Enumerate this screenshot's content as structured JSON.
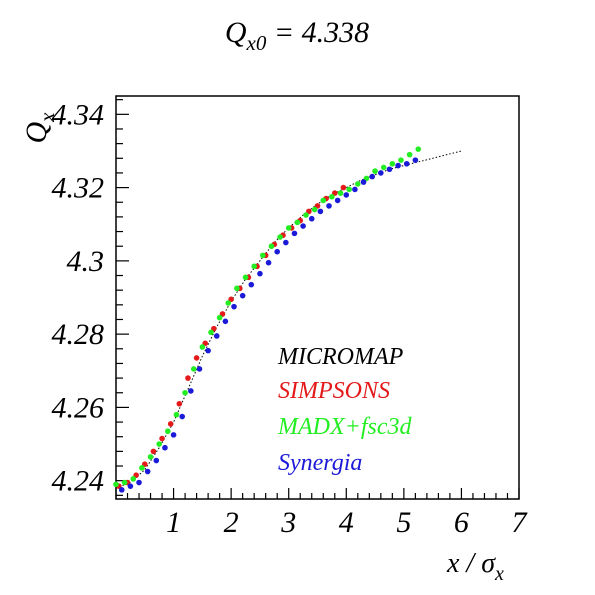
{
  "chart_data": {
    "type": "scatter",
    "title": {
      "main": "Q",
      "sub": "x0",
      "rest": " = 4.338"
    },
    "ylabel": {
      "main": "Q",
      "sub": "x"
    },
    "xlabel": {
      "main": "x / ",
      "sigma": "σ",
      "sub": "x"
    },
    "xlim": [
      0,
      7
    ],
    "ylim": [
      4.235,
      4.345
    ],
    "x_ticks": [
      "1",
      "2",
      "3",
      "4",
      "5",
      "6",
      "7"
    ],
    "y_ticks": [
      "4.24",
      "4.26",
      "4.28",
      "4.3",
      "4.32",
      "4.34"
    ],
    "legend_position": "center-right",
    "grid": false,
    "series": [
      {
        "name": "MICROMAP",
        "color": "#000000",
        "style": "dotted-line",
        "x": [
          0.0,
          0.25,
          0.5,
          0.75,
          1.0,
          1.25,
          1.5,
          1.75,
          2.0,
          2.25,
          2.5,
          2.75,
          3.0,
          3.25,
          3.5,
          3.75,
          4.0,
          4.25,
          4.5,
          4.75,
          5.0,
          5.25,
          5.5,
          5.75,
          6.0
        ],
        "y": [
          4.238,
          4.2395,
          4.243,
          4.249,
          4.256,
          4.265,
          4.274,
          4.282,
          4.289,
          4.295,
          4.3,
          4.305,
          4.309,
          4.3125,
          4.3155,
          4.318,
          4.32,
          4.322,
          4.3235,
          4.325,
          4.326,
          4.327,
          4.328,
          4.329,
          4.33
        ]
      },
      {
        "name": "SIMPSONS",
        "color": "#e41a1a",
        "style": "points",
        "x": [
          0.05,
          0.2,
          0.35,
          0.5,
          0.65,
          0.8,
          0.95,
          1.1,
          1.25,
          1.4,
          1.55,
          1.7,
          1.85,
          2.0,
          2.15,
          2.3,
          2.45,
          2.6,
          2.75,
          2.9,
          3.05,
          3.2,
          3.35,
          3.5,
          3.65,
          3.8,
          3.95
        ],
        "y": [
          4.2385,
          4.2395,
          4.2415,
          4.2445,
          4.248,
          4.2515,
          4.2555,
          4.261,
          4.268,
          4.2735,
          4.2775,
          4.2815,
          4.2855,
          4.2895,
          4.2925,
          4.2955,
          4.2985,
          4.3015,
          4.3045,
          4.307,
          4.309,
          4.311,
          4.3135,
          4.315,
          4.317,
          4.3185,
          4.32
        ]
      },
      {
        "name": "MADX+fsc3d",
        "color": "#22ee22",
        "style": "points",
        "x": [
          0.0,
          0.15,
          0.3,
          0.45,
          0.6,
          0.75,
          0.9,
          1.05,
          1.2,
          1.35,
          1.5,
          1.65,
          1.8,
          1.95,
          2.1,
          2.25,
          2.4,
          2.55,
          2.7,
          2.85,
          3.0,
          3.15,
          3.3,
          3.45,
          3.6,
          3.75,
          3.9,
          4.05,
          4.2,
          4.35,
          4.5,
          4.65,
          4.8,
          4.95,
          5.1,
          5.25
        ],
        "y": [
          4.239,
          4.2395,
          4.2405,
          4.2435,
          4.2465,
          4.25,
          4.2535,
          4.258,
          4.264,
          4.2705,
          4.2765,
          4.2805,
          4.2845,
          4.2885,
          4.2925,
          4.2955,
          4.2985,
          4.3015,
          4.304,
          4.3065,
          4.309,
          4.3105,
          4.3125,
          4.314,
          4.3165,
          4.3175,
          4.3185,
          4.3195,
          4.321,
          4.3225,
          4.3245,
          4.3255,
          4.3265,
          4.3275,
          4.329,
          4.3305
        ]
      },
      {
        "name": "Synergia",
        "color": "#1a1ad8",
        "style": "points",
        "x": [
          0.1,
          0.25,
          0.4,
          0.55,
          0.7,
          0.85,
          1.0,
          1.15,
          1.3,
          1.45,
          1.6,
          1.75,
          1.9,
          2.05,
          2.2,
          2.35,
          2.5,
          2.65,
          2.8,
          2.95,
          3.1,
          3.25,
          3.4,
          3.55,
          3.7,
          3.85,
          4.0,
          4.15,
          4.3,
          4.45,
          4.6,
          4.75,
          4.9,
          5.05,
          5.2
        ],
        "y": [
          4.2375,
          4.2385,
          4.2395,
          4.2425,
          4.2455,
          4.249,
          4.2525,
          4.2575,
          4.2645,
          4.2705,
          4.2755,
          4.2795,
          4.2835,
          4.2875,
          4.2905,
          4.2935,
          4.2965,
          4.2995,
          4.3025,
          4.305,
          4.3075,
          4.3095,
          4.3115,
          4.3135,
          4.315,
          4.3165,
          4.318,
          4.3195,
          4.3215,
          4.323,
          4.324,
          4.325,
          4.326,
          4.3265,
          4.3275
        ]
      }
    ]
  }
}
